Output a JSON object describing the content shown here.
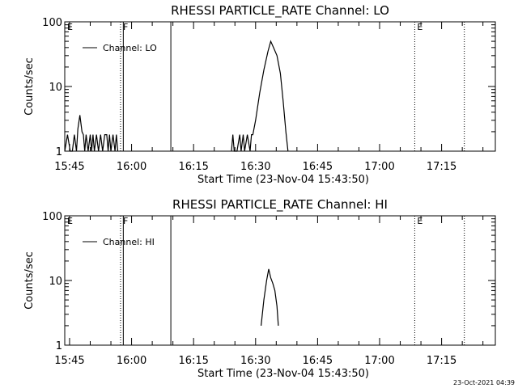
{
  "footer_timestamp": "23-Oct-2021 04:39",
  "chart_data": [
    {
      "type": "line",
      "title": "RHESSI PARTICLE_RATE Channel: LO",
      "xlabel": "Start Time (23-Nov-04 15:43:50)",
      "ylabel": "Counts/sec",
      "y_scale": "log",
      "ylim": [
        1,
        100
      ],
      "xlim": [
        "15:43:50",
        "17:28:00"
      ],
      "yticks": [
        "1",
        "10",
        "100"
      ],
      "xticks": [
        "15:45",
        "16:00",
        "16:15",
        "16:30",
        "16:45",
        "17:00",
        "17:15"
      ],
      "legend": {
        "placement": "top-left",
        "label": "Channel: LO"
      },
      "markers": [
        {
          "time": "15:43:50",
          "label": "E",
          "style": "dotted"
        },
        {
          "time": "15:57:20",
          "label": "F",
          "style": "dotted"
        },
        {
          "time": "15:58:00",
          "label": "",
          "style": "solid"
        },
        {
          "time": "16:09:30",
          "label": "",
          "style": "solid"
        },
        {
          "time": "17:08:30",
          "label": "E",
          "style": "dotted"
        },
        {
          "time": "17:20:30",
          "label": "",
          "style": "dotted"
        }
      ],
      "series": [
        {
          "name": "Channel: LO",
          "points": [
            [
              "15:43:50",
              1
            ],
            [
              "15:44:30",
              1.8
            ],
            [
              "15:45:10",
              1
            ],
            [
              "15:45:40",
              1
            ],
            [
              "15:46:10",
              1.8
            ],
            [
              "15:46:40",
              1
            ],
            [
              "15:47:00",
              2.2
            ],
            [
              "15:47:30",
              3.6
            ],
            [
              "15:48:00",
              2
            ],
            [
              "15:48:20",
              1.8
            ],
            [
              "15:48:40",
              1
            ],
            [
              "15:49:00",
              1.8
            ],
            [
              "15:49:30",
              1
            ],
            [
              "15:50:00",
              1.8
            ],
            [
              "15:50:20",
              1
            ],
            [
              "15:50:40",
              1.8
            ],
            [
              "15:51:00",
              1
            ],
            [
              "15:51:30",
              1.8
            ],
            [
              "15:52:00",
              1
            ],
            [
              "15:52:30",
              1.8
            ],
            [
              "15:53:00",
              1
            ],
            [
              "15:53:30",
              1.8
            ],
            [
              "15:54:00",
              1.8
            ],
            [
              "15:54:20",
              1
            ],
            [
              "15:54:40",
              1.8
            ],
            [
              "15:55:00",
              1
            ],
            [
              "15:55:30",
              1.8
            ],
            [
              "15:56:00",
              1
            ],
            [
              "15:56:20",
              1.8
            ],
            [
              "15:56:40",
              1
            ]
          ]
        },
        {
          "name": "Channel: LO",
          "points": [
            [
              "16:24:10",
              1
            ],
            [
              "16:24:30",
              1.8
            ],
            [
              "16:24:50",
              1
            ],
            [
              "16:25:30",
              1
            ],
            [
              "16:26:10",
              1.8
            ],
            [
              "16:26:30",
              1
            ],
            [
              "16:27:00",
              1.8
            ],
            [
              "16:27:20",
              1
            ],
            [
              "16:28:00",
              1.8
            ],
            [
              "16:28:40",
              1
            ],
            [
              "16:29:00",
              1.8
            ],
            [
              "16:29:20",
              1.8
            ],
            [
              "16:30:00",
              3
            ],
            [
              "16:31:00",
              8
            ],
            [
              "16:32:00",
              18
            ],
            [
              "16:33:00",
              35
            ],
            [
              "16:33:40",
              50
            ],
            [
              "16:34:20",
              40
            ],
            [
              "16:35:10",
              30
            ],
            [
              "16:36:00",
              16
            ],
            [
              "16:36:40",
              6
            ],
            [
              "16:37:20",
              2
            ],
            [
              "16:37:50",
              1
            ]
          ]
        }
      ]
    },
    {
      "type": "line",
      "title": "RHESSI PARTICLE_RATE Channel: HI",
      "xlabel": "Start Time (23-Nov-04 15:43:50)",
      "ylabel": "Counts/sec",
      "y_scale": "log",
      "ylim": [
        1,
        100
      ],
      "xlim": [
        "15:43:50",
        "17:28:00"
      ],
      "yticks": [
        "1",
        "10",
        "100"
      ],
      "xticks": [
        "15:45",
        "16:00",
        "16:15",
        "16:30",
        "16:45",
        "17:00",
        "17:15"
      ],
      "legend": {
        "placement": "top-left",
        "label": "Channel: HI"
      },
      "markers": [
        {
          "time": "15:43:50",
          "label": "E",
          "style": "dotted"
        },
        {
          "time": "15:57:20",
          "label": "F",
          "style": "dotted"
        },
        {
          "time": "15:58:00",
          "label": "",
          "style": "solid"
        },
        {
          "time": "16:09:30",
          "label": "",
          "style": "solid"
        },
        {
          "time": "17:08:30",
          "label": "E",
          "style": "dotted"
        },
        {
          "time": "17:20:30",
          "label": "",
          "style": "dotted"
        }
      ],
      "series": [
        {
          "name": "Channel: HI",
          "points": [
            [
              "16:31:20",
              2
            ],
            [
              "16:32:00",
              5
            ],
            [
              "16:32:40",
              10
            ],
            [
              "16:33:10",
              15
            ],
            [
              "16:33:40",
              11
            ],
            [
              "16:34:10",
              9
            ],
            [
              "16:34:40",
              7
            ],
            [
              "16:35:10",
              4
            ],
            [
              "16:35:30",
              2
            ]
          ]
        }
      ]
    }
  ]
}
